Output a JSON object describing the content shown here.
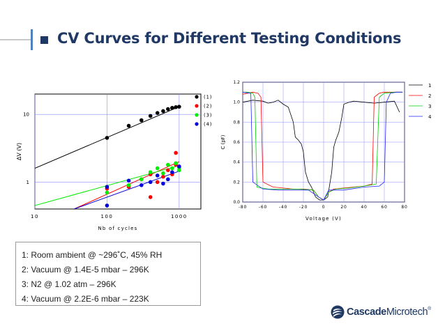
{
  "slide": {
    "title": "CV Curves for Different Testing Conditions",
    "legend_lines": [
      "1: Room ambient @ ~296˚C, 45% RH",
      "2: Vacuum @ 1.4E-5 mbar – 296K",
      "3: N2 @ 1.02 atm – 296K",
      "4: Vacuum @ 2.2E-6 mbar – 223K"
    ],
    "logo": {
      "bold": "Cascade",
      "rest": "Microtech",
      "mark": "®"
    }
  },
  "chart_data": [
    {
      "type": "scatter",
      "xlabel": "Nb of cycles",
      "ylabel": "ΔV (V)",
      "xscale": "log",
      "yscale": "log",
      "xlim": [
        10,
        2000
      ],
      "ylim": [
        0.4,
        20
      ],
      "x_ticks": [
        10,
        100,
        1000
      ],
      "x_tick_labels": [
        "10",
        "100",
        "1000"
      ],
      "y_ticks": [
        1,
        10
      ],
      "y_tick_labels": [
        "1",
        "10"
      ],
      "grid": true,
      "legend": "top-right",
      "series": [
        {
          "name": "(1)",
          "color": "#000000",
          "points": [
            [
              100,
              4.5
            ],
            [
              200,
              6.8
            ],
            [
              300,
              8.2
            ],
            [
              400,
              9.5
            ],
            [
              500,
              10.5
            ],
            [
              600,
              11.2
            ],
            [
              700,
              12.0
            ],
            [
              800,
              12.5
            ],
            [
              900,
              12.8
            ],
            [
              1000,
              13.0
            ]
          ],
          "fit": [
            [
              10,
              1.6
            ],
            [
              1000,
              13.0
            ]
          ]
        },
        {
          "name": "(2)",
          "color": "#ff0000",
          "points": [
            [
              100,
              0.8
            ],
            [
              200,
              0.85
            ],
            [
              300,
              1.1
            ],
            [
              400,
              0.6
            ],
            [
              400,
              1.3
            ],
            [
              500,
              1.0
            ],
            [
              600,
              1.2
            ],
            [
              700,
              1.5
            ],
            [
              800,
              1.3
            ],
            [
              900,
              1.8
            ],
            [
              900,
              2.7
            ]
          ],
          "fit": [
            [
              35,
              0.4
            ],
            [
              1000,
              2.0
            ]
          ]
        },
        {
          "name": "(3)",
          "color": "#00ee00",
          "points": [
            [
              100,
              0.7
            ],
            [
              200,
              0.9
            ],
            [
              300,
              1.1
            ],
            [
              400,
              1.4
            ],
            [
              500,
              1.6
            ],
            [
              600,
              1.35
            ],
            [
              700,
              1.8
            ],
            [
              800,
              1.6
            ],
            [
              900,
              1.9
            ],
            [
              1000,
              1.5
            ],
            [
              1000,
              1.65
            ]
          ],
          "fit": [
            [
              10,
              0.45
            ],
            [
              1000,
              1.75
            ]
          ]
        },
        {
          "name": "(4)",
          "color": "#0000dd",
          "points": [
            [
              100,
              0.45
            ],
            [
              100,
              0.85
            ],
            [
              200,
              1.05
            ],
            [
              300,
              0.9
            ],
            [
              400,
              1.0
            ],
            [
              500,
              1.25
            ],
            [
              600,
              0.95
            ],
            [
              700,
              1.1
            ],
            [
              800,
              1.4
            ],
            [
              1000,
              1.7
            ]
          ],
          "fit": [
            [
              35,
              0.4
            ],
            [
              1000,
              1.45
            ]
          ]
        }
      ]
    },
    {
      "type": "line",
      "xlabel": "Voltage (V)",
      "ylabel": "C (pF)",
      "xlim": [
        -80,
        80
      ],
      "ylim": [
        0,
        1.2
      ],
      "x_ticks": [
        -80,
        -60,
        -40,
        -20,
        0,
        20,
        40,
        60,
        80
      ],
      "x_tick_labels": [
        "-80",
        "-60",
        "-40",
        "-20",
        "0",
        "20",
        "40",
        "60",
        "80"
      ],
      "y_ticks": [
        0,
        0.2,
        0.4,
        0.6,
        0.8,
        1.0,
        1.2
      ],
      "y_tick_labels": [
        "0.0",
        "0.2",
        "0.4",
        "0.6",
        "0.8",
        "1.0",
        "1.2"
      ],
      "grid": true,
      "legend": "right",
      "series": [
        {
          "name": "1",
          "color": "#000000",
          "points": [
            [
              -80,
              1.0
            ],
            [
              -70,
              1.02
            ],
            [
              -60,
              1.01
            ],
            [
              -55,
              0.99
            ],
            [
              -50,
              1.0
            ],
            [
              -45,
              1.02
            ],
            [
              -40,
              0.98
            ],
            [
              -35,
              0.95
            ],
            [
              -30,
              0.8
            ],
            [
              -28,
              0.65
            ],
            [
              -25,
              0.62
            ],
            [
              -22,
              0.58
            ],
            [
              -20,
              0.5
            ],
            [
              -18,
              0.3
            ],
            [
              -15,
              0.2
            ],
            [
              -12,
              0.15
            ],
            [
              -8,
              0.05
            ],
            [
              -4,
              0.02
            ],
            [
              0,
              0.02
            ],
            [
              4,
              0.05
            ],
            [
              8,
              0.3
            ],
            [
              10,
              0.55
            ],
            [
              12,
              0.62
            ],
            [
              15,
              0.7
            ],
            [
              18,
              0.85
            ],
            [
              20,
              0.98
            ],
            [
              25,
              1.0
            ],
            [
              30,
              1.01
            ],
            [
              40,
              1.0
            ],
            [
              50,
              0.99
            ],
            [
              60,
              1.0
            ],
            [
              70,
              1.01
            ],
            [
              75,
              0.9
            ]
          ]
        },
        {
          "name": "2",
          "color": "#ff0000",
          "points": [
            [
              -80,
              1.08
            ],
            [
              -70,
              1.1
            ],
            [
              -65,
              1.09
            ],
            [
              -62,
              1.05
            ],
            [
              -60,
              0.2
            ],
            [
              -50,
              0.15
            ],
            [
              -40,
              0.14
            ],
            [
              -30,
              0.13
            ],
            [
              -20,
              0.13
            ],
            [
              -10,
              0.12
            ],
            [
              -5,
              0.05
            ],
            [
              0,
              0.02
            ],
            [
              5,
              0.1
            ],
            [
              10,
              0.13
            ],
            [
              20,
              0.14
            ],
            [
              30,
              0.15
            ],
            [
              40,
              0.16
            ],
            [
              48,
              0.18
            ],
            [
              50,
              1.05
            ],
            [
              55,
              1.09
            ],
            [
              60,
              1.1
            ],
            [
              70,
              1.1
            ],
            [
              78,
              1.1
            ]
          ]
        },
        {
          "name": "3",
          "color": "#00cc00",
          "points": [
            [
              -80,
              1.1
            ],
            [
              -75,
              1.1
            ],
            [
              -70,
              1.09
            ],
            [
              -68,
              1.05
            ],
            [
              -66,
              0.15
            ],
            [
              -55,
              0.13
            ],
            [
              -40,
              0.13
            ],
            [
              -25,
              0.13
            ],
            [
              -10,
              0.12
            ],
            [
              -5,
              0.05
            ],
            [
              0,
              0.02
            ],
            [
              5,
              0.1
            ],
            [
              12,
              0.13
            ],
            [
              25,
              0.14
            ],
            [
              40,
              0.16
            ],
            [
              52,
              0.18
            ],
            [
              55,
              1.05
            ],
            [
              60,
              1.09
            ],
            [
              70,
              1.1
            ],
            [
              78,
              1.1
            ]
          ]
        },
        {
          "name": "4",
          "color": "#2222ff",
          "points": [
            [
              -80,
              1.1
            ],
            [
              -72,
              1.09
            ],
            [
              -70,
              0.2
            ],
            [
              -60,
              0.13
            ],
            [
              -45,
              0.12
            ],
            [
              -30,
              0.12
            ],
            [
              -15,
              0.12
            ],
            [
              -5,
              0.05
            ],
            [
              0,
              0.02
            ],
            [
              5,
              0.12
            ],
            [
              20,
              0.12
            ],
            [
              40,
              0.15
            ],
            [
              55,
              0.16
            ],
            [
              60,
              0.2
            ],
            [
              62,
              1.0
            ],
            [
              66,
              1.09
            ],
            [
              72,
              1.1
            ],
            [
              78,
              1.1
            ]
          ]
        }
      ]
    }
  ]
}
